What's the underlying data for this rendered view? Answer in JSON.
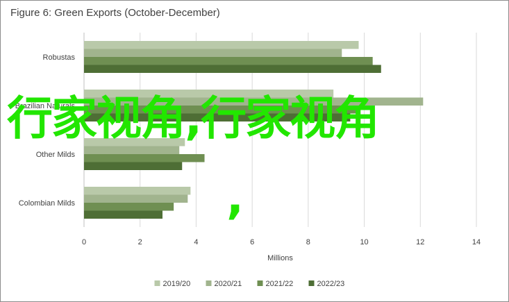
{
  "chart_data": {
    "type": "bar",
    "orientation": "horizontal",
    "title": "Figure 6: Green Exports (October-December)",
    "xlabel": "Millions",
    "ylabel": "",
    "xlim": [
      0,
      14
    ],
    "xticks": [
      0,
      2,
      4,
      6,
      8,
      10,
      12,
      14
    ],
    "grid": "vertical",
    "legend_position": "bottom",
    "categories": [
      "Robustas",
      "Brazilian Naturals",
      "Other Milds",
      "Colombian Milds"
    ],
    "series": [
      {
        "name": "2019/20",
        "color": "#b9c9a9",
        "values": [
          9.8,
          8.9,
          3.6,
          3.8
        ]
      },
      {
        "name": "2020/21",
        "color": "#a1b48e",
        "values": [
          9.2,
          12.1,
          3.4,
          3.7
        ]
      },
      {
        "name": "2021/22",
        "color": "#6f8f52",
        "values": [
          10.3,
          9.8,
          4.3,
          3.2
        ]
      },
      {
        "name": "2022/23",
        "color": "#4e6e35",
        "values": [
          10.6,
          9.5,
          3.5,
          2.8
        ]
      }
    ]
  },
  "overlay": {
    "text": "行家视角,行家视角",
    "comma": ","
  }
}
